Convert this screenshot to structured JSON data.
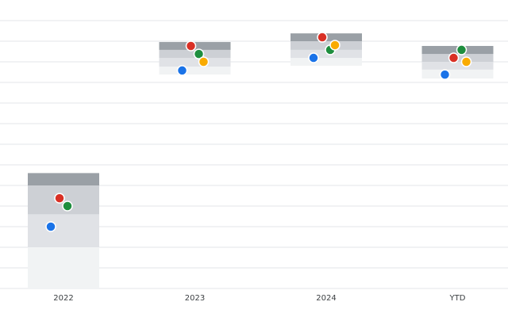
{
  "chart_data": {
    "type": "range-dots",
    "categories": [
      "2022",
      "2023",
      "2024",
      "YTD"
    ],
    "bands": [
      [
        0,
        2.0,
        3.6,
        5.0,
        5.6
      ],
      [
        10.38,
        10.77,
        11.19,
        11.58,
        11.96
      ],
      [
        10.81,
        11.19,
        11.58,
        12.0,
        12.38
      ],
      [
        10.19,
        10.62,
        11.0,
        11.38,
        11.77
      ]
    ],
    "band_colors": [
      "#f1f3f4",
      "#e0e2e6",
      "#cdd0d5",
      "#9aa0a6"
    ],
    "series": [
      {
        "color": "#1a73e8",
        "values": [
          3.0,
          10.58,
          11.19,
          10.38
        ]
      },
      {
        "color": "#d93025",
        "values": [
          4.38,
          11.77,
          12.19,
          11.19
        ]
      },
      {
        "color": "#1e8e3e",
        "values": [
          4.0,
          11.38,
          11.58,
          11.58
        ]
      },
      {
        "color": "#f9ab00",
        "values": [
          null,
          11.0,
          11.81,
          11.0
        ]
      }
    ],
    "ylim": [
      0,
      14
    ],
    "yticks": [
      0,
      1,
      2,
      3,
      4,
      5,
      6,
      7,
      8,
      9,
      10,
      11,
      12,
      13
    ],
    "grid": true
  }
}
